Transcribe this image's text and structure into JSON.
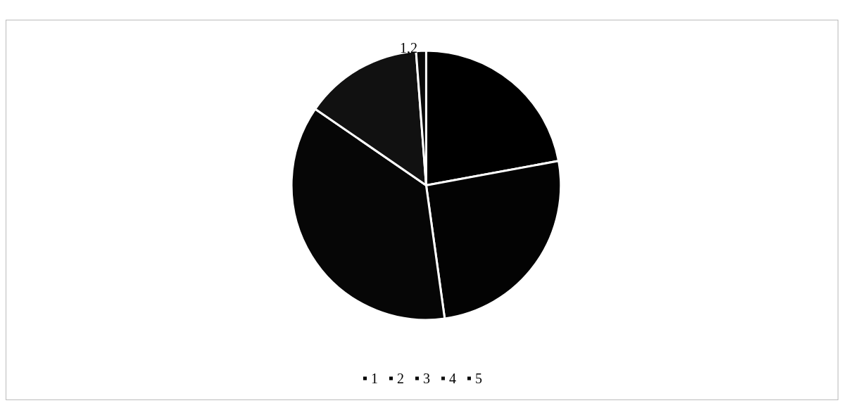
{
  "chart_data": {
    "type": "pie",
    "categories": [
      "1",
      "2",
      "3",
      "4",
      "5"
    ],
    "values": [
      22.1,
      25.7,
      36.8,
      14.2,
      1.2
    ],
    "colors": [
      "#000000",
      "#030303",
      "#060606",
      "#111111",
      "#090909"
    ],
    "value_labels": [
      null,
      null,
      null,
      null,
      "1,2"
    ],
    "legend": "bottom"
  }
}
